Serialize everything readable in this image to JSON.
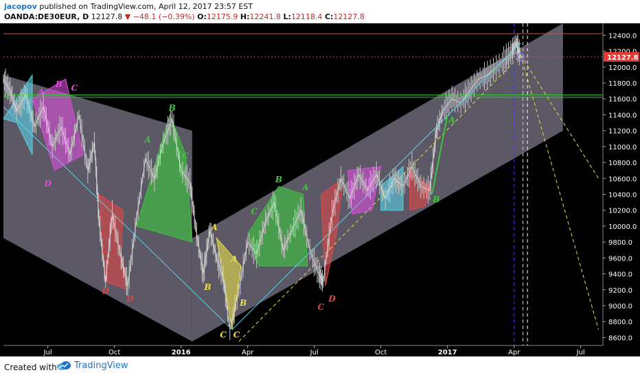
{
  "header": {
    "user": "jacopov",
    "published_text": "published on TradingView.com, April 12, 2017 23:57 EST",
    "symbol": "OANDA:DE30EUR, D",
    "last": "12127.8",
    "change": "−48.1 (−0.39%)",
    "open_label": "O:",
    "open": "12175.9",
    "high_label": "H:",
    "high": "12241.8",
    "low_label": "L:",
    "low": "12118.4",
    "close_label": "C:",
    "close": "12127.8"
  },
  "footer": {
    "created": "Created with",
    "brand": "TradingView"
  },
  "colors": {
    "up": "#c8c8c8",
    "price_tag": "#e53935",
    "green": "#3cc83c",
    "cyan": "#5ad2e6",
    "magenta": "#d84fd8",
    "red": "#e04848",
    "yellow": "#e8e04a",
    "channel": "#e6dcff"
  },
  "chart_data": {
    "type": "candlestick",
    "instrument": "OANDA:DE30EUR",
    "timeframe": "D",
    "ylim": [
      8500,
      12550
    ],
    "y_ticks": [
      8600,
      8800,
      9000,
      9200,
      9400,
      9600,
      9800,
      10000,
      10200,
      10400,
      10600,
      10800,
      11000,
      11200,
      11400,
      11600,
      11800,
      12000,
      12200,
      12400
    ],
    "x_ticks": [
      {
        "label": "Jul",
        "t": 6
      },
      {
        "label": "Oct",
        "t": 9
      },
      {
        "label": "2016",
        "t": 12
      },
      {
        "label": "Apr",
        "t": 15
      },
      {
        "label": "Jul",
        "t": 18
      },
      {
        "label": "Oct",
        "t": 21
      },
      {
        "label": "2017",
        "t": 24
      },
      {
        "label": "Apr",
        "t": 27
      },
      {
        "label": "Jul",
        "t": 30
      }
    ],
    "xlim": [
      4,
      31
    ],
    "last_price": 12127.8,
    "last_price_label": "12127.8",
    "price": [
      {
        "t": 4.0,
        "v": 11850
      },
      {
        "t": 4.3,
        "v": 11700
      },
      {
        "t": 4.6,
        "v": 11450
      },
      {
        "t": 5.0,
        "v": 11650
      },
      {
        "t": 5.4,
        "v": 11250
      },
      {
        "t": 5.8,
        "v": 11500
      },
      {
        "t": 6.2,
        "v": 11000
      },
      {
        "t": 6.6,
        "v": 11250
      },
      {
        "t": 7.0,
        "v": 10900
      },
      {
        "t": 7.4,
        "v": 11400
      },
      {
        "t": 7.8,
        "v": 10700
      },
      {
        "t": 8.1,
        "v": 11050
      },
      {
        "t": 8.3,
        "v": 10100
      },
      {
        "t": 8.6,
        "v": 9300
      },
      {
        "t": 8.9,
        "v": 10150
      },
      {
        "t": 9.3,
        "v": 9600
      },
      {
        "t": 9.6,
        "v": 9250
      },
      {
        "t": 10.0,
        "v": 10100
      },
      {
        "t": 10.4,
        "v": 10850
      },
      {
        "t": 10.8,
        "v": 10600
      },
      {
        "t": 11.2,
        "v": 11050
      },
      {
        "t": 11.6,
        "v": 11350
      },
      {
        "t": 12.0,
        "v": 10700
      },
      {
        "t": 12.4,
        "v": 10550
      },
      {
        "t": 12.7,
        "v": 9900
      },
      {
        "t": 13.0,
        "v": 9400
      },
      {
        "t": 13.3,
        "v": 9950
      },
      {
        "t": 13.6,
        "v": 9600
      },
      {
        "t": 13.9,
        "v": 9350
      },
      {
        "t": 14.2,
        "v": 8700
      },
      {
        "t": 14.6,
        "v": 9200
      },
      {
        "t": 15.0,
        "v": 9800
      },
      {
        "t": 15.4,
        "v": 9650
      },
      {
        "t": 15.8,
        "v": 10050
      },
      {
        "t": 16.2,
        "v": 10300
      },
      {
        "t": 16.6,
        "v": 9700
      },
      {
        "t": 17.0,
        "v": 9950
      },
      {
        "t": 17.4,
        "v": 10200
      },
      {
        "t": 17.8,
        "v": 9700
      },
      {
        "t": 18.2,
        "v": 9400
      },
      {
        "t": 18.4,
        "v": 9300
      },
      {
        "t": 18.8,
        "v": 10150
      },
      {
        "t": 19.2,
        "v": 10600
      },
      {
        "t": 19.6,
        "v": 10350
      },
      {
        "t": 20.0,
        "v": 10650
      },
      {
        "t": 20.4,
        "v": 10450
      },
      {
        "t": 20.8,
        "v": 10650
      },
      {
        "t": 21.2,
        "v": 10350
      },
      {
        "t": 21.6,
        "v": 10600
      },
      {
        "t": 22.0,
        "v": 10500
      },
      {
        "t": 22.4,
        "v": 10750
      },
      {
        "t": 22.8,
        "v": 10500
      },
      {
        "t": 23.2,
        "v": 10450
      },
      {
        "t": 23.5,
        "v": 11200
      },
      {
        "t": 23.8,
        "v": 11450
      },
      {
        "t": 24.2,
        "v": 11600
      },
      {
        "t": 24.6,
        "v": 11550
      },
      {
        "t": 25.0,
        "v": 11700
      },
      {
        "t": 25.4,
        "v": 11850
      },
      {
        "t": 25.8,
        "v": 11900
      },
      {
        "t": 26.2,
        "v": 12000
      },
      {
        "t": 26.6,
        "v": 12100
      },
      {
        "t": 26.9,
        "v": 12200
      },
      {
        "t": 27.1,
        "v": 12300
      },
      {
        "t": 27.3,
        "v": 12127.8
      }
    ],
    "h_lines": [
      {
        "v": 12420,
        "color": "#e04848",
        "style": "solid"
      },
      {
        "v": 12127.8,
        "color": "#e04848",
        "style": "dotted"
      },
      {
        "v": 11650,
        "color": "#3cc83c",
        "style": "solid"
      },
      {
        "v": 11620,
        "color": "#3cc83c",
        "style": "solid"
      }
    ],
    "channels": [
      {
        "poly": [
          [
            4.0,
            11900
          ],
          [
            12.5,
            11200
          ],
          [
            12.5,
            8550
          ],
          [
            4.0,
            9850
          ]
        ]
      },
      {
        "poly": [
          [
            12.5,
            9850
          ],
          [
            29.2,
            12550
          ],
          [
            29.2,
            11200
          ],
          [
            12.5,
            8550
          ]
        ]
      }
    ],
    "patterns": [
      {
        "color": "#5ad2e6",
        "poly": [
          [
            4.0,
            11350
          ],
          [
            5.3,
            11900
          ],
          [
            5.3,
            10900
          ],
          [
            4.6,
            11300
          ]
        ]
      },
      {
        "color": "#d84fd8",
        "poly": [
          [
            5.3,
            11600
          ],
          [
            6.8,
            11850
          ],
          [
            7.6,
            10900
          ],
          [
            6.3,
            10700
          ]
        ]
      },
      {
        "color": "#e04848",
        "poly": [
          [
            8.3,
            10400
          ],
          [
            9.4,
            10200
          ],
          [
            9.3,
            9700
          ],
          [
            9.6,
            9200
          ],
          [
            8.6,
            9300
          ]
        ]
      },
      {
        "color": "#3cc83c",
        "poly": [
          [
            10.0,
            10000
          ],
          [
            11.5,
            11400
          ],
          [
            12.2,
            10900
          ],
          [
            12.5,
            9800
          ]
        ]
      },
      {
        "color": "#e8e04a",
        "poly": [
          [
            13.6,
            9850
          ],
          [
            14.3,
            8700
          ],
          [
            14.7,
            9500
          ]
        ]
      },
      {
        "color": "#3cc83c",
        "poly": [
          [
            15.0,
            9900
          ],
          [
            16.4,
            10500
          ],
          [
            17.5,
            10400
          ],
          [
            17.7,
            9500
          ],
          [
            15.5,
            9500
          ]
        ]
      },
      {
        "color": "#e04848",
        "poly": [
          [
            18.3,
            10400
          ],
          [
            19.3,
            10600
          ],
          [
            19.0,
            9900
          ],
          [
            18.5,
            9250
          ]
        ]
      },
      {
        "color": "#d84fd8",
        "poly": [
          [
            19.5,
            10700
          ],
          [
            21.0,
            10750
          ],
          [
            20.6,
            10200
          ],
          [
            19.7,
            10150
          ]
        ]
      },
      {
        "color": "#5ad2e6",
        "poly": [
          [
            21.0,
            10500
          ],
          [
            22.0,
            10750
          ],
          [
            22.0,
            10200
          ],
          [
            21.0,
            10200
          ]
        ]
      },
      {
        "color": "#e04848",
        "poly": [
          [
            22.3,
            10700
          ],
          [
            23.2,
            10500
          ],
          [
            23.0,
            10250
          ],
          [
            22.3,
            10200
          ]
        ]
      }
    ],
    "trend_lines": [
      {
        "color": "#5ad2e6",
        "style": "solid",
        "from": [
          4.0,
          11500
        ],
        "to": [
          14.3,
          8700
        ]
      },
      {
        "color": "#5ad2e6",
        "style": "solid",
        "from": [
          14.3,
          8700
        ],
        "to": [
          27.3,
          12300
        ]
      },
      {
        "color": "#e8e04a",
        "style": "dashed",
        "from": [
          14.6,
          8550
        ],
        "to": [
          27.3,
          12150
        ]
      },
      {
        "color": "#e8e04a",
        "style": "dashed",
        "from": [
          27.3,
          12150
        ],
        "to": [
          30.8,
          10600
        ]
      },
      {
        "color": "#e8e04a",
        "style": "dashed",
        "from": [
          27.3,
          12150
        ],
        "to": [
          30.8,
          8700
        ]
      },
      {
        "color": "#3cc83c",
        "style": "solid",
        "from": [
          23.3,
          10400
        ],
        "to": [
          24.0,
          11400
        ]
      }
    ],
    "v_lines": [
      {
        "t": 27.0,
        "color": "#3a3ad8",
        "style": "dashed"
      },
      {
        "t": 27.4,
        "color": "#e8e04a",
        "style": "dashed"
      },
      {
        "t": 27.6,
        "color": "#ffffff",
        "style": "dashed"
      }
    ],
    "labels": [
      {
        "text": "A",
        "t": 5.7,
        "v": 11650,
        "color": "#d84fd8"
      },
      {
        "text": "B",
        "t": 6.5,
        "v": 11750,
        "color": "#d84fd8"
      },
      {
        "text": "C",
        "t": 7.2,
        "v": 11700,
        "color": "#d84fd8"
      },
      {
        "text": "D",
        "t": 6.0,
        "v": 10500,
        "color": "#d84fd8"
      },
      {
        "text": "B",
        "t": 11.6,
        "v": 11450,
        "color": "#3cc83c"
      },
      {
        "text": "A",
        "t": 10.5,
        "v": 11050,
        "color": "#3cc83c"
      },
      {
        "text": "C",
        "t": 12.2,
        "v": 10850,
        "color": "#3cc83c"
      },
      {
        "text": "D",
        "t": 8.6,
        "v": 9150,
        "color": "#e04848"
      },
      {
        "text": "D",
        "t": 9.7,
        "v": 9050,
        "color": "#e04848"
      },
      {
        "text": "A",
        "t": 13.5,
        "v": 9950,
        "color": "#e8e04a"
      },
      {
        "text": "B",
        "t": 13.2,
        "v": 9200,
        "color": "#e8e04a"
      },
      {
        "text": "A",
        "t": 14.4,
        "v": 9550,
        "color": "#e8e04a"
      },
      {
        "text": "B",
        "t": 14.8,
        "v": 9000,
        "color": "#e8e04a"
      },
      {
        "text": "C",
        "t": 13.9,
        "v": 8600,
        "color": "#e8e04a"
      },
      {
        "text": "C",
        "t": 14.5,
        "v": 8600,
        "color": "#e8e04a"
      },
      {
        "text": "C",
        "t": 15.3,
        "v": 10150,
        "color": "#3cc83c"
      },
      {
        "text": "B",
        "t": 16.4,
        "v": 10550,
        "color": "#3cc83c"
      },
      {
        "text": "A",
        "t": 17.6,
        "v": 10450,
        "color": "#3cc83c"
      },
      {
        "text": "C",
        "t": 18.3,
        "v": 8950,
        "color": "#e04848"
      },
      {
        "text": "D",
        "t": 18.8,
        "v": 9050,
        "color": "#e04848"
      },
      {
        "text": "A",
        "t": 24.2,
        "v": 11300,
        "color": "#3cc83c"
      },
      {
        "text": "B",
        "t": 23.5,
        "v": 10300,
        "color": "#3cc83c"
      }
    ]
  }
}
